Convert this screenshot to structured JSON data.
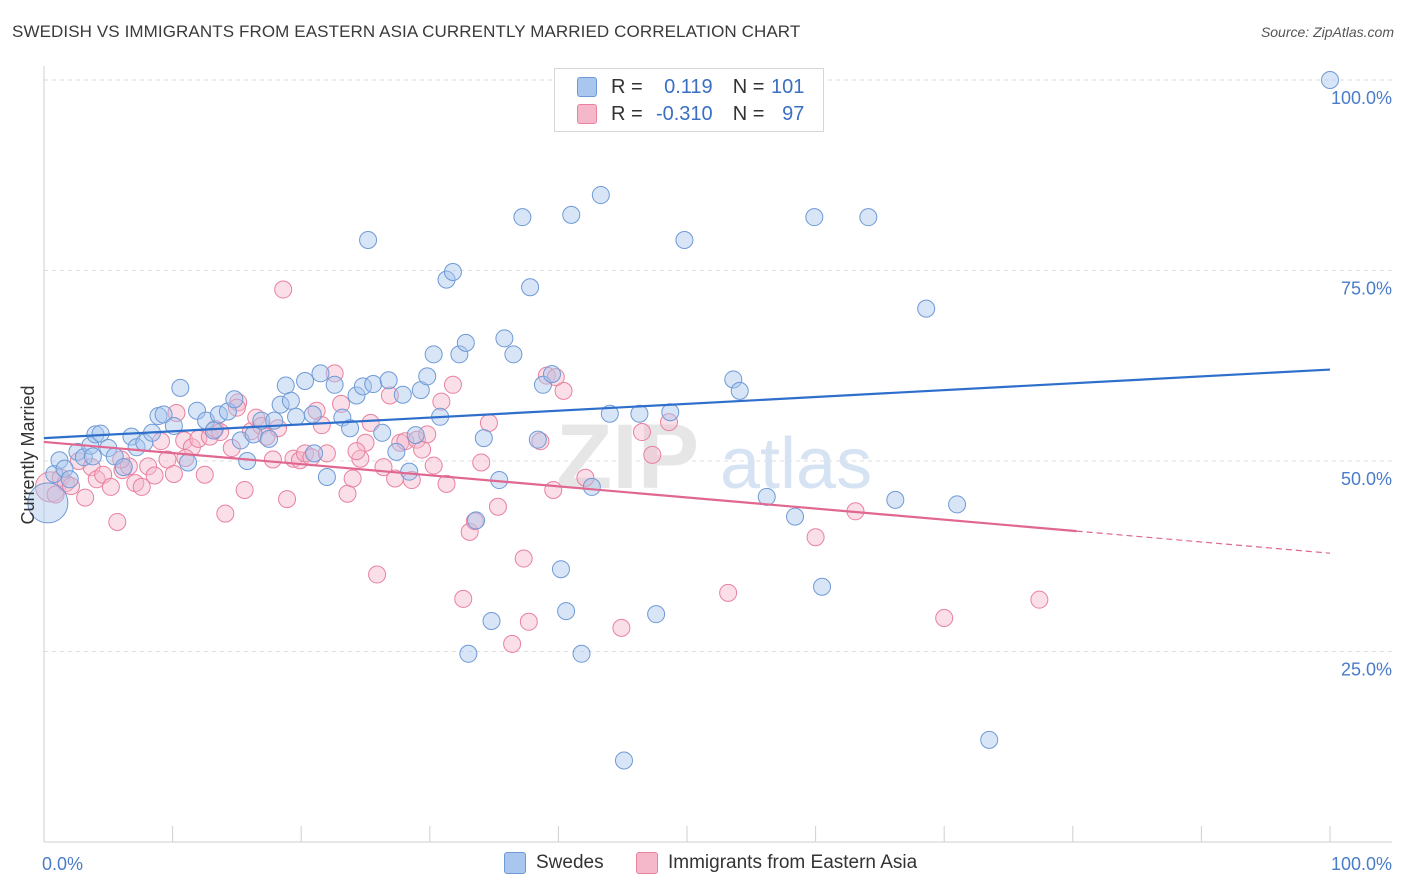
{
  "title": "SWEDISH VS IMMIGRANTS FROM EASTERN ASIA CURRENTLY MARRIED CORRELATION CHART",
  "source": "Source: ZipAtlas.com",
  "watermark": {
    "zip": "ZIP",
    "atlas": "atlas"
  },
  "colors": {
    "blue_fill": "#a9c6ee",
    "blue_stroke": "#6f9ad6",
    "blue_line": "#2e6fcc",
    "pink_fill": "#f5b8cb",
    "pink_stroke": "#e9819f",
    "pink_line": "#e0678f",
    "tick_text": "#4a7cc9",
    "grid": "#dedede"
  },
  "legend": {
    "rows": [
      {
        "r_label": "R = ",
        "r_value": "0.119",
        "n_label": "N = ",
        "n_value": "101"
      },
      {
        "r_label": "R = ",
        "r_value": "-0.310",
        "n_label": "N = ",
        "n_value": "97"
      }
    ]
  },
  "bottom_legend": {
    "swedes": "Swedes",
    "immigrants": "Immigrants from Eastern Asia"
  },
  "chart_data": {
    "type": "scatter",
    "xlabel": "",
    "ylabel": "Currently Married",
    "xlim": [
      0,
      100
    ],
    "ylim": [
      0,
      100
    ],
    "x_tick_labels": [
      "0.0%",
      "100.0%"
    ],
    "y_ticks": [
      25,
      50,
      75,
      100
    ],
    "y_tick_labels": [
      "25.0%",
      "50.0%",
      "75.0%",
      "100.0%"
    ],
    "grid": true,
    "series": [
      {
        "name": "Swedes",
        "r": 0.119,
        "n": 101,
        "trend": {
          "x": [
            0,
            100
          ],
          "y": [
            53.0,
            62.0
          ]
        },
        "points": [
          [
            0.3,
            44.5
          ],
          [
            0.8,
            48.3
          ],
          [
            1.2,
            50.1
          ],
          [
            1.6,
            49.0
          ],
          [
            2.0,
            47.6
          ],
          [
            2.6,
            51.2
          ],
          [
            3.1,
            50.5
          ],
          [
            3.6,
            52.0
          ],
          [
            4.0,
            53.5
          ],
          [
            4.4,
            53.6
          ],
          [
            5.0,
            51.7
          ],
          [
            5.5,
            50.6
          ],
          [
            6.2,
            49.2
          ],
          [
            6.8,
            53.2
          ],
          [
            7.2,
            51.8
          ],
          [
            7.8,
            52.4
          ],
          [
            8.4,
            53.7
          ],
          [
            8.9,
            55.9
          ],
          [
            9.3,
            56.1
          ],
          [
            10.1,
            54.6
          ],
          [
            10.6,
            59.6
          ],
          [
            11.2,
            49.8
          ],
          [
            11.9,
            56.6
          ],
          [
            12.6,
            55.3
          ],
          [
            13.2,
            54.0
          ],
          [
            13.6,
            56.1
          ],
          [
            14.3,
            56.5
          ],
          [
            14.8,
            58.1
          ],
          [
            15.3,
            52.7
          ],
          [
            15.8,
            50.0
          ],
          [
            16.3,
            53.5
          ],
          [
            16.9,
            55.3
          ],
          [
            17.5,
            52.9
          ],
          [
            17.9,
            55.3
          ],
          [
            18.4,
            57.4
          ],
          [
            18.8,
            59.9
          ],
          [
            19.2,
            57.9
          ],
          [
            19.6,
            55.8
          ],
          [
            20.3,
            60.5
          ],
          [
            20.9,
            56.1
          ],
          [
            21.5,
            61.5
          ],
          [
            22.0,
            47.9
          ],
          [
            22.6,
            60.0
          ],
          [
            23.2,
            55.7
          ],
          [
            23.8,
            54.3
          ],
          [
            24.3,
            58.6
          ],
          [
            24.8,
            59.8
          ],
          [
            25.2,
            79.0
          ],
          [
            25.6,
            60.1
          ],
          [
            26.3,
            53.7
          ],
          [
            26.8,
            60.6
          ],
          [
            27.4,
            51.2
          ],
          [
            27.9,
            58.7
          ],
          [
            28.4,
            48.6
          ],
          [
            28.9,
            53.4
          ],
          [
            29.3,
            59.3
          ],
          [
            29.8,
            61.1
          ],
          [
            30.3,
            64.0
          ],
          [
            30.8,
            55.8
          ],
          [
            31.3,
            73.8
          ],
          [
            31.8,
            74.8
          ],
          [
            32.3,
            64.0
          ],
          [
            32.8,
            65.5
          ],
          [
            33.6,
            42.2
          ],
          [
            34.2,
            53.0
          ],
          [
            34.8,
            29.0
          ],
          [
            35.4,
            47.5
          ],
          [
            35.8,
            66.1
          ],
          [
            36.5,
            64.0
          ],
          [
            37.2,
            82.0
          ],
          [
            37.8,
            72.8
          ],
          [
            38.4,
            52.8
          ],
          [
            38.8,
            60.0
          ],
          [
            39.5,
            61.4
          ],
          [
            40.2,
            35.8
          ],
          [
            40.6,
            30.3
          ],
          [
            41.0,
            82.3
          ],
          [
            41.8,
            24.7
          ],
          [
            42.6,
            46.6
          ],
          [
            43.3,
            84.9
          ],
          [
            44.0,
            56.2
          ],
          [
            45.1,
            10.7
          ],
          [
            46.3,
            56.2
          ],
          [
            47.6,
            29.9
          ],
          [
            48.7,
            56.4
          ],
          [
            49.8,
            79.0
          ],
          [
            53.6,
            60.7
          ],
          [
            54.1,
            59.2
          ],
          [
            56.2,
            45.3
          ],
          [
            58.4,
            42.7
          ],
          [
            59.9,
            82.0
          ],
          [
            60.5,
            33.5
          ],
          [
            64.1,
            82.0
          ],
          [
            66.2,
            44.9
          ],
          [
            68.6,
            70.0
          ],
          [
            71.0,
            44.3
          ],
          [
            73.5,
            13.4
          ],
          [
            100.0,
            100.0
          ],
          [
            33.0,
            24.7
          ],
          [
            3.8,
            50.6
          ],
          [
            21.0,
            51.0
          ]
        ]
      },
      {
        "name": "Immigrants from Eastern Asia",
        "r": -0.31,
        "n": 97,
        "trend": {
          "x": [
            0,
            80.3
          ],
          "y": [
            52.5,
            40.8
          ]
        },
        "trend_dashed": {
          "x": [
            80.3,
            100
          ],
          "y": [
            40.8,
            37.9
          ]
        },
        "points": [
          [
            0.5,
            46.6
          ],
          [
            0.9,
            45.6
          ],
          [
            1.3,
            47.8
          ],
          [
            1.7,
            47.1
          ],
          [
            2.1,
            46.7
          ],
          [
            2.7,
            50.0
          ],
          [
            3.2,
            45.2
          ],
          [
            3.7,
            49.2
          ],
          [
            4.1,
            47.6
          ],
          [
            4.6,
            48.2
          ],
          [
            5.2,
            46.6
          ],
          [
            5.7,
            42.0
          ],
          [
            6.1,
            48.8
          ],
          [
            6.6,
            49.3
          ],
          [
            7.1,
            47.1
          ],
          [
            7.6,
            46.6
          ],
          [
            8.1,
            49.3
          ],
          [
            8.6,
            48.1
          ],
          [
            9.1,
            52.6
          ],
          [
            9.6,
            50.2
          ],
          [
            10.1,
            48.3
          ],
          [
            10.3,
            56.3
          ],
          [
            10.9,
            52.7
          ],
          [
            11.5,
            51.8
          ],
          [
            12.0,
            52.9
          ],
          [
            12.5,
            48.2
          ],
          [
            12.9,
            53.2
          ],
          [
            13.3,
            54.2
          ],
          [
            13.7,
            53.8
          ],
          [
            14.1,
            43.1
          ],
          [
            14.6,
            51.7
          ],
          [
            15.1,
            57.7
          ],
          [
            15.6,
            46.2
          ],
          [
            16.1,
            53.9
          ],
          [
            16.5,
            55.7
          ],
          [
            16.9,
            54.6
          ],
          [
            17.3,
            53.2
          ],
          [
            17.8,
            50.2
          ],
          [
            18.2,
            54.3
          ],
          [
            18.6,
            72.5
          ],
          [
            18.9,
            45.0
          ],
          [
            19.4,
            50.3
          ],
          [
            19.9,
            50.1
          ],
          [
            20.3,
            51.0
          ],
          [
            20.8,
            50.5
          ],
          [
            21.2,
            56.6
          ],
          [
            21.6,
            54.7
          ],
          [
            22.0,
            51.0
          ],
          [
            22.6,
            61.5
          ],
          [
            23.1,
            57.5
          ],
          [
            23.6,
            45.7
          ],
          [
            24.0,
            47.7
          ],
          [
            24.6,
            50.3
          ],
          [
            25.0,
            52.4
          ],
          [
            25.4,
            55.0
          ],
          [
            25.9,
            35.1
          ],
          [
            26.4,
            49.2
          ],
          [
            26.9,
            58.6
          ],
          [
            27.3,
            47.7
          ],
          [
            27.7,
            52.4
          ],
          [
            28.1,
            52.6
          ],
          [
            28.6,
            47.5
          ],
          [
            29.0,
            52.8
          ],
          [
            29.4,
            51.5
          ],
          [
            29.8,
            53.5
          ],
          [
            30.3,
            49.4
          ],
          [
            30.9,
            57.8
          ],
          [
            31.3,
            47.0
          ],
          [
            31.8,
            60.0
          ],
          [
            32.6,
            31.9
          ],
          [
            33.1,
            40.7
          ],
          [
            33.5,
            42.1
          ],
          [
            34.0,
            49.8
          ],
          [
            34.6,
            55.0
          ],
          [
            35.3,
            44.0
          ],
          [
            36.4,
            26.0
          ],
          [
            37.3,
            37.2
          ],
          [
            37.7,
            28.9
          ],
          [
            38.6,
            52.6
          ],
          [
            39.1,
            61.2
          ],
          [
            39.6,
            46.2
          ],
          [
            40.4,
            59.2
          ],
          [
            42.1,
            47.8
          ],
          [
            44.9,
            28.1
          ],
          [
            46.5,
            53.8
          ],
          [
            47.3,
            50.8
          ],
          [
            48.6,
            55.1
          ],
          [
            53.2,
            32.7
          ],
          [
            60.0,
            40.0
          ],
          [
            63.1,
            43.4
          ],
          [
            70.0,
            29.4
          ],
          [
            77.4,
            31.8
          ],
          [
            39.8,
            61.0
          ],
          [
            24.3,
            51.3
          ],
          [
            15.0,
            57.0
          ],
          [
            6.0,
            50.2
          ],
          [
            11.0,
            50.4
          ]
        ]
      }
    ]
  }
}
